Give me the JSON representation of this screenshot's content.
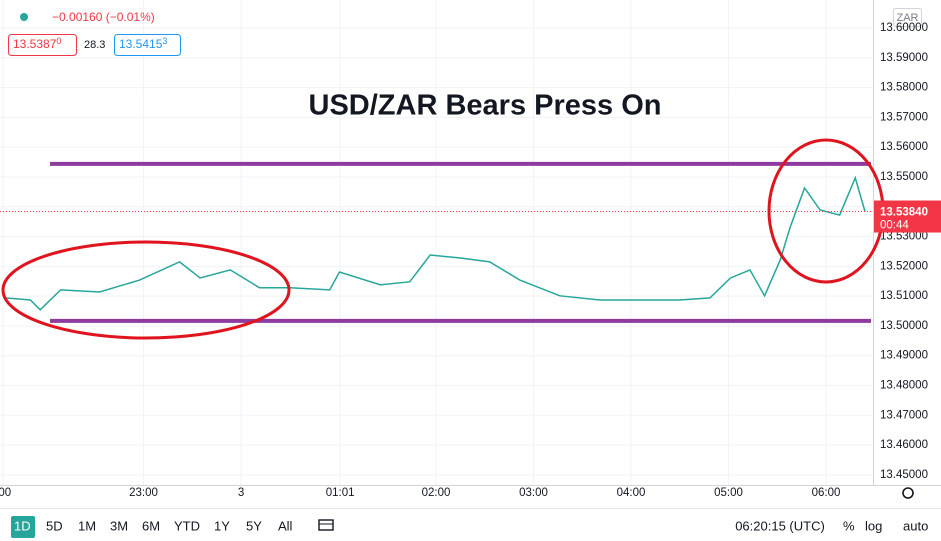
{
  "legend": {
    "change": "−0.00160 (−0.01%)",
    "bid": {
      "price": "13.5387",
      "pip": "0"
    },
    "spread": "28.3",
    "ask": {
      "price": "13.5415",
      "pip": "3"
    }
  },
  "currency": "ZAR",
  "chart_data": {
    "type": "line",
    "title": "USD/ZAR Bears Press On",
    "series": [
      {
        "name": "USD/ZAR",
        "color": "#26a69a",
        "x": [
          -2.42,
          -2.16,
          -2.06,
          -1.85,
          -1.45,
          -1.04,
          -0.63,
          -0.42,
          -0.11,
          0.19,
          0.5,
          0.91,
          1.01,
          1.43,
          1.73,
          1.94,
          2.25,
          2.55,
          2.86,
          3.27,
          3.68,
          4.09,
          4.5,
          4.81,
          5.02,
          5.22,
          5.37,
          5.53,
          5.63,
          5.78,
          5.94,
          6.14,
          6.3,
          6.4
        ],
        "values": [
          13.5094,
          13.5087,
          13.5054,
          13.5121,
          13.5114,
          13.5154,
          13.5215,
          13.5161,
          13.5188,
          13.5128,
          13.5128,
          13.5121,
          13.5181,
          13.5138,
          13.5148,
          13.5238,
          13.5228,
          13.5215,
          13.5154,
          13.5101,
          13.5087,
          13.5087,
          13.5087,
          13.5094,
          13.5161,
          13.5188,
          13.5101,
          13.5221,
          13.5329,
          13.5463,
          13.5389,
          13.5372,
          13.5497,
          13.5384
        ]
      }
    ],
    "levels": [
      {
        "value": 13.5544,
        "color": "#8e3a9e"
      },
      {
        "value": 13.5017,
        "color": "#8e3a9e"
      }
    ],
    "last_price": {
      "value": 13.5384,
      "label": "13.53840",
      "countdown": "00:44",
      "color": "#f23645"
    },
    "xlim": [
      -2.472,
      6.482
    ],
    "xticks": [
      {
        "value": -2.44,
        "label": ":00"
      },
      {
        "value": -1,
        "label": "23:00"
      },
      {
        "value": 0,
        "label": "3"
      },
      {
        "value": 1.017,
        "label": "01:01"
      },
      {
        "value": 2,
        "label": "02:00"
      },
      {
        "value": 3,
        "label": "03:00"
      },
      {
        "value": 4,
        "label": "04:00"
      },
      {
        "value": 5,
        "label": "05:00"
      },
      {
        "value": 6,
        "label": "06:00"
      }
    ],
    "ylim": [
      13.4466,
      13.6094
    ],
    "yticks": [
      {
        "value": 13.45,
        "label": "13.45000"
      },
      {
        "value": 13.46,
        "label": "13.46000"
      },
      {
        "value": 13.47,
        "label": "13.47000"
      },
      {
        "value": 13.48,
        "label": "13.48000"
      },
      {
        "value": 13.49,
        "label": "13.49000"
      },
      {
        "value": 13.5,
        "label": "13.50000"
      },
      {
        "value": 13.51,
        "label": "13.51000"
      },
      {
        "value": 13.52,
        "label": "13.52000"
      },
      {
        "value": 13.53,
        "label": "13.53000"
      },
      {
        "value": 13.54,
        "label": "13.54000"
      },
      {
        "value": 13.55,
        "label": "13.55000"
      },
      {
        "value": 13.56,
        "label": "13.56000"
      },
      {
        "value": 13.57,
        "label": "13.57000"
      },
      {
        "value": 13.58,
        "label": "13.58000"
      },
      {
        "value": 13.59,
        "label": "13.59000"
      },
      {
        "value": 13.6,
        "label": "13.60000"
      }
    ],
    "grid": true
  },
  "toolbar": {
    "ranges": [
      "1D",
      "5D",
      "1M",
      "3M",
      "6M",
      "YTD",
      "1Y",
      "5Y",
      "All"
    ],
    "clock": "06:20:15 (UTC)",
    "options": [
      "%",
      "log",
      "auto"
    ]
  }
}
